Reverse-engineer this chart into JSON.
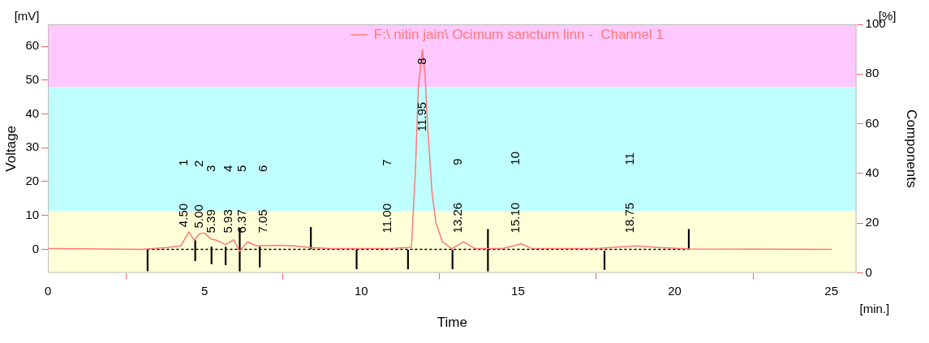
{
  "chart_data": {
    "type": "line",
    "xlabel": "Time",
    "ylabel": "Voltage",
    "y2label": "Components",
    "xlim": [
      0,
      25.8
    ],
    "xticks": [
      0,
      5,
      10,
      15,
      20,
      25
    ],
    "ylim": [
      -7,
      66.5
    ],
    "yticks": [
      0,
      10,
      20,
      30,
      40,
      50,
      60
    ],
    "y2lim": [
      0,
      100
    ],
    "y2ticks": [
      0,
      20,
      40,
      60,
      80,
      100
    ],
    "grid": false,
    "legend": "top",
    "marker": "none",
    "bands": [
      {
        "axis": "y",
        "from": -7,
        "to": 11.3,
        "color": "#ffffd8"
      },
      {
        "axis": "y",
        "from": 11.3,
        "to": 48,
        "color": "#c0ffff"
      },
      {
        "axis": "y",
        "from": 48,
        "to": 66.5,
        "color": "#ffc8ff"
      }
    ],
    "series": [
      {
        "name": "F:\\ nitin jain\\ Ocimum sanctum linn -  Channel 1",
        "color": "#ff7878",
        "x": [
          0,
          3,
          3.8,
          4.24,
          4.5,
          4.67,
          4.84,
          5.0,
          5.19,
          5.39,
          5.53,
          5.66,
          5.93,
          6.11,
          6.37,
          6.65,
          7.05,
          7.42,
          7.86,
          8.37,
          9,
          11,
          11.45,
          11.6,
          11.73,
          11.82,
          11.95,
          12.03,
          12.12,
          12.25,
          12.38,
          12.59,
          12.89,
          13.26,
          13.63,
          14.5,
          15.1,
          15.43,
          17.5,
          18.75,
          19.5,
          20.5,
          25
        ],
        "values": [
          0.2,
          0,
          0.5,
          1.0,
          5.1,
          2.6,
          4.6,
          4.8,
          3.1,
          2.6,
          2.0,
          1.4,
          2.8,
          -0.6,
          2.2,
          1.0,
          1.1,
          1.2,
          1.0,
          0.5,
          0.2,
          0.3,
          0.5,
          0.6,
          23.9,
          48,
          59,
          52,
          36,
          17.5,
          7.9,
          2.2,
          0.2,
          2.2,
          0.2,
          0.2,
          1.6,
          0.3,
          0.2,
          1.0,
          0.5,
          0.1,
          0
        ]
      },
      {
        "type": "line",
        "color": "#000000",
        "line_style": "dotted",
        "x": [
          3.18,
          20.45
        ],
        "values": [
          0,
          0
        ]
      },
      {
        "type": "bar",
        "color": "#000000",
        "x": [
          3.18,
          4.7,
          5.22,
          5.67,
          6.12,
          6.76,
          8.39,
          9.85,
          11.49,
          12.91,
          14.04,
          17.76,
          20.45
        ],
        "base": [
          -6.4,
          -3.4,
          -4.3,
          -4.6,
          -6.5,
          -5.3,
          0,
          -5.8,
          -5.8,
          -5.8,
          -6.5,
          -6,
          0
        ],
        "values": [
          6.4,
          6.0,
          5.0,
          5.3,
          12.8,
          6.0,
          6.5,
          5.6,
          5.6,
          5.6,
          12.4,
          5.5,
          5.9
        ]
      }
    ],
    "annotations": [
      "[mV]",
      "[%]",
      "[min.]",
      {
        "text": "4.50 1",
        "x": 4.5,
        "y": 5.1
      },
      {
        "text": "5.00 2",
        "x": 5.0,
        "y": 4.8
      },
      {
        "text": "5.39 3",
        "x": 5.39,
        "y": 2.6
      },
      {
        "text": "5.93 4",
        "x": 5.93,
        "y": 2.8
      },
      {
        "text": "6.37 5",
        "x": 6.37,
        "y": 2.2
      },
      {
        "text": "7.05 6",
        "x": 7.05,
        "y": 1.1
      },
      {
        "text": "11.00 7",
        "x": 11.0,
        "y": 0.3
      },
      {
        "text": "11.95 8",
        "x": 11.95,
        "y": 59
      },
      {
        "text": "13.26 9",
        "x": 13.26,
        "y": 2.2
      },
      {
        "text": "15.10 10",
        "x": 15.1,
        "y": 1.6
      },
      {
        "text": "18.75 11",
        "x": 18.75,
        "y": 1.0
      }
    ]
  }
}
